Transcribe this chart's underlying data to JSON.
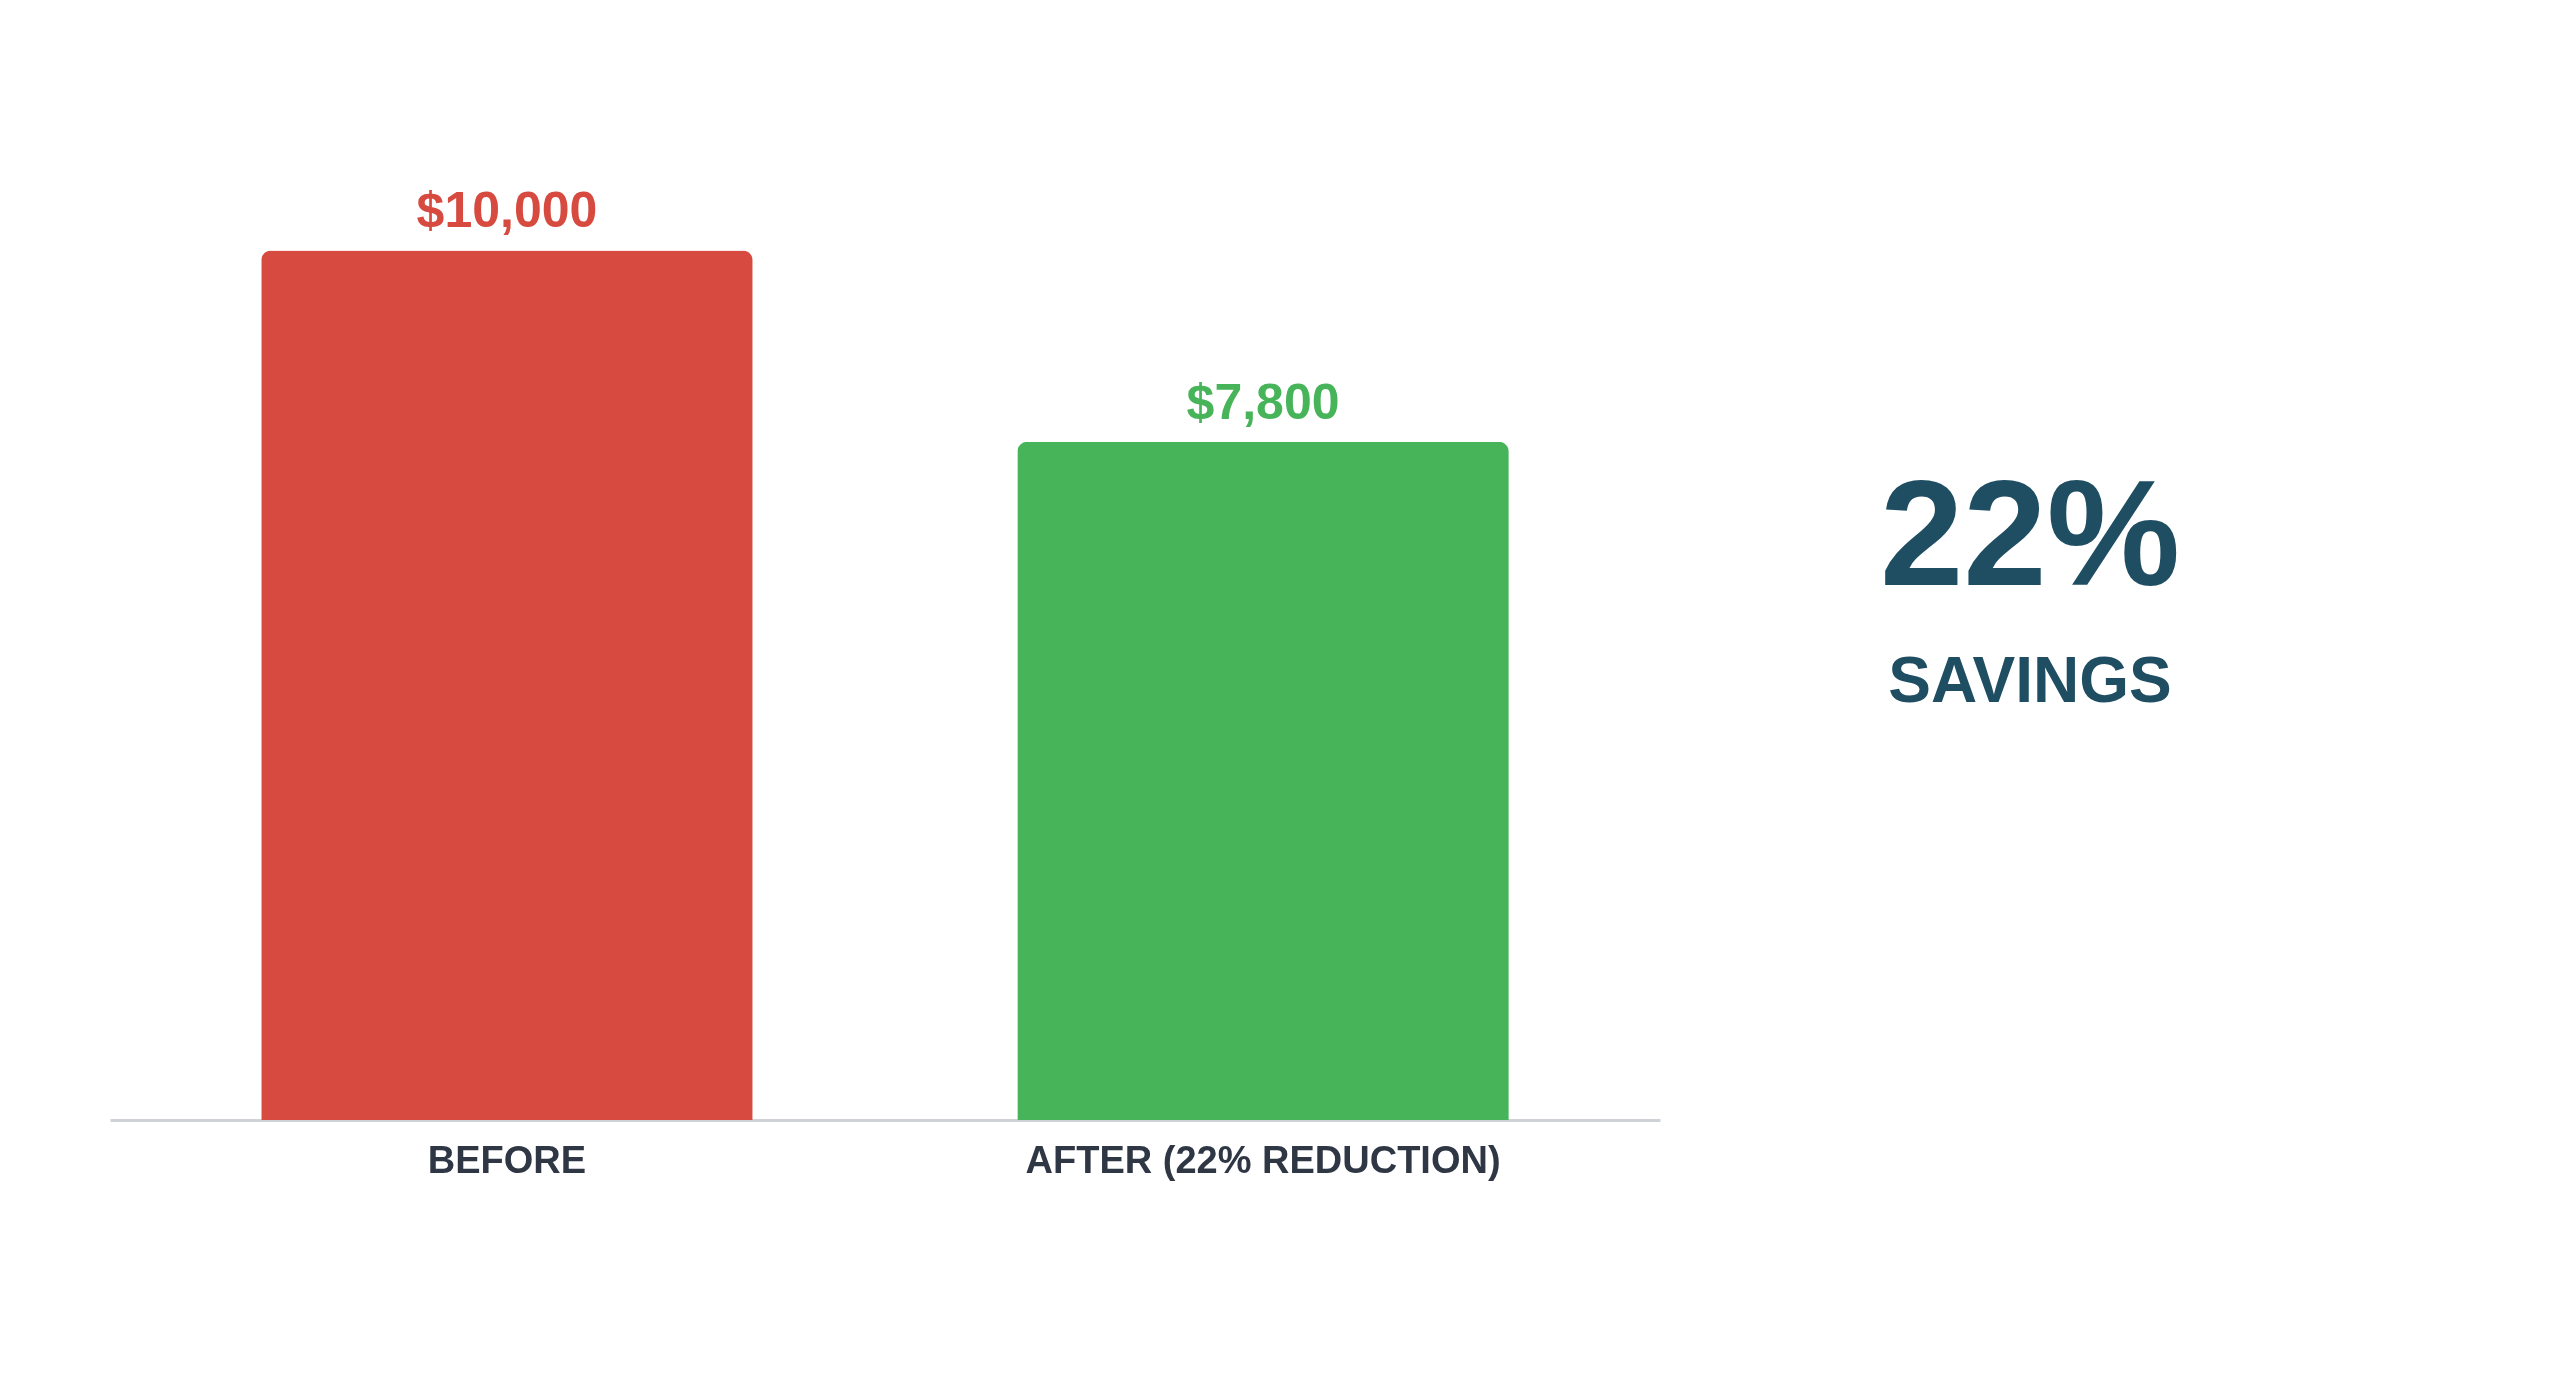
{
  "chart_data": {
    "type": "bar",
    "categories": [
      "BEFORE",
      "AFTER (22% REDUCTION)"
    ],
    "values": [
      10000,
      7800
    ],
    "colors": [
      "#d64a40",
      "#47b45a"
    ],
    "value_labels": [
      "$10,000",
      "$7,800"
    ],
    "tick_labels": "x",
    "grid": false,
    "annotations": [
      "22%",
      "SAVINGS"
    ]
  }
}
